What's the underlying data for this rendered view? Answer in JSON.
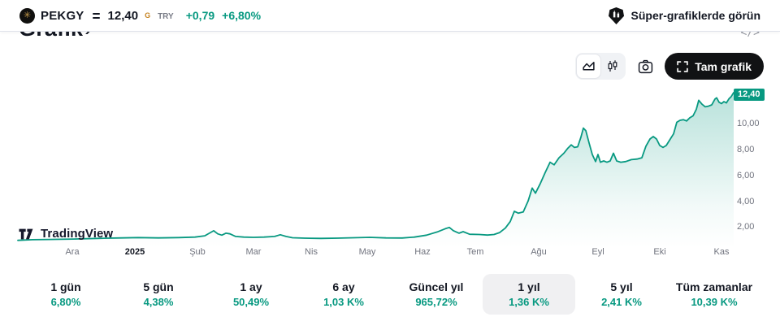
{
  "header": {
    "symbol": "PEKGY",
    "price": "12,40",
    "price_flag": "G",
    "currency": "TRY",
    "change_abs": "+0,79",
    "change_pct": "+6,80%",
    "supercharts_label": "Süper-grafiklerde görün"
  },
  "section": {
    "title": "Grafik",
    "chevron": "›"
  },
  "toolbar": {
    "fullscreen_label": "Tam grafik"
  },
  "watermark_label": "TradingView",
  "colors": {
    "accent_teal": "#089981",
    "text_dark": "#131722",
    "text_gray": "#787b86",
    "flag_gold": "#c5821f",
    "badge_bg": "#089981",
    "selected_pill": "#f0f0f2",
    "button_black": "#111214"
  },
  "chart_data": {
    "type": "area",
    "symbol": "PEKGY",
    "range": "1 yıl",
    "last_price": "12,40",
    "line_color": "#089981",
    "grid": false,
    "ylim": [
      0.7,
      13.0
    ],
    "x_ticks": [
      "Ara",
      "2025",
      "Şub",
      "Mar",
      "Nis",
      "May",
      "Haz",
      "Tem",
      "Ağu",
      "Eyl",
      "Eki",
      "Kas"
    ],
    "y_ticks": [
      "10,00",
      "8,00",
      "6,00",
      "4,00",
      "2,00"
    ],
    "y_tick_values": [
      10,
      8,
      6,
      4,
      2
    ],
    "points": [
      [
        22,
        0.95
      ],
      [
        40,
        1.0
      ],
      [
        60,
        1.02
      ],
      [
        90,
        1.05
      ],
      [
        120,
        1.1
      ],
      [
        150,
        1.14
      ],
      [
        170,
        1.16
      ],
      [
        195,
        1.14
      ],
      [
        220,
        1.16
      ],
      [
        240,
        1.2
      ],
      [
        252,
        1.3
      ],
      [
        263,
        1.69
      ],
      [
        268,
        1.45
      ],
      [
        273,
        1.35
      ],
      [
        278,
        1.5
      ],
      [
        283,
        1.45
      ],
      [
        290,
        1.25
      ],
      [
        300,
        1.2
      ],
      [
        312,
        1.18
      ],
      [
        325,
        1.2
      ],
      [
        338,
        1.25
      ],
      [
        345,
        1.38
      ],
      [
        352,
        1.25
      ],
      [
        360,
        1.15
      ],
      [
        375,
        1.12
      ],
      [
        395,
        1.1
      ],
      [
        415,
        1.12
      ],
      [
        435,
        1.15
      ],
      [
        455,
        1.18
      ],
      [
        475,
        1.14
      ],
      [
        495,
        1.13
      ],
      [
        510,
        1.2
      ],
      [
        525,
        1.35
      ],
      [
        538,
        1.6
      ],
      [
        548,
        1.85
      ],
      [
        553,
        1.95
      ],
      [
        558,
        1.7
      ],
      [
        565,
        1.5
      ],
      [
        570,
        1.62
      ],
      [
        578,
        1.42
      ],
      [
        590,
        1.4
      ],
      [
        600,
        1.36
      ],
      [
        608,
        1.4
      ],
      [
        615,
        1.55
      ],
      [
        622,
        1.9
      ],
      [
        628,
        2.4
      ],
      [
        633,
        3.2
      ],
      [
        638,
        3.05
      ],
      [
        644,
        3.15
      ],
      [
        650,
        4.0
      ],
      [
        655,
        5.0
      ],
      [
        659,
        4.6
      ],
      [
        665,
        5.35
      ],
      [
        671,
        6.2
      ],
      [
        677,
        7.0
      ],
      [
        682,
        6.8
      ],
      [
        688,
        7.35
      ],
      [
        694,
        7.7
      ],
      [
        699,
        8.1
      ],
      [
        703,
        8.35
      ],
      [
        707,
        8.15
      ],
      [
        711,
        8.2
      ],
      [
        715,
        8.95
      ],
      [
        718,
        9.65
      ],
      [
        721,
        9.45
      ],
      [
        725,
        8.5
      ],
      [
        729,
        7.6
      ],
      [
        733,
        7.05
      ],
      [
        736,
        7.6
      ],
      [
        739,
        7.0
      ],
      [
        743,
        7.1
      ],
      [
        747,
        7.0
      ],
      [
        751,
        7.1
      ],
      [
        755,
        7.7
      ],
      [
        759,
        7.1
      ],
      [
        764,
        7.0
      ],
      [
        770,
        7.05
      ],
      [
        777,
        7.2
      ],
      [
        784,
        7.25
      ],
      [
        790,
        7.35
      ],
      [
        795,
        8.25
      ],
      [
        800,
        8.8
      ],
      [
        804,
        9.0
      ],
      [
        808,
        8.8
      ],
      [
        812,
        8.3
      ],
      [
        816,
        8.15
      ],
      [
        820,
        8.3
      ],
      [
        825,
        8.8
      ],
      [
        829,
        9.2
      ],
      [
        833,
        10.1
      ],
      [
        837,
        10.25
      ],
      [
        841,
        10.3
      ],
      [
        845,
        10.2
      ],
      [
        849,
        10.45
      ],
      [
        853,
        10.6
      ],
      [
        857,
        11.1
      ],
      [
        860,
        11.8
      ],
      [
        864,
        11.5
      ],
      [
        868,
        11.3
      ],
      [
        872,
        11.35
      ],
      [
        876,
        11.45
      ],
      [
        880,
        11.9
      ],
      [
        882,
        12.0
      ],
      [
        885,
        11.65
      ],
      [
        888,
        11.55
      ],
      [
        891,
        11.7
      ],
      [
        894,
        11.6
      ],
      [
        897,
        11.9
      ],
      [
        900,
        12.1
      ],
      [
        903,
        12.4
      ]
    ]
  },
  "periods": [
    {
      "label": "1 gün",
      "value": "6,80%",
      "selected": false
    },
    {
      "label": "5 gün",
      "value": "4,38%",
      "selected": false
    },
    {
      "label": "1 ay",
      "value": "50,49%",
      "selected": false
    },
    {
      "label": "6 ay",
      "value": "1,03 K%",
      "selected": false
    },
    {
      "label": "Güncel yıl",
      "value": "965,72%",
      "selected": false
    },
    {
      "label": "1 yıl",
      "value": "1,36 K%",
      "selected": true
    },
    {
      "label": "5 yıl",
      "value": "2,41 K%",
      "selected": false
    },
    {
      "label": "Tüm zamanlar",
      "value": "10,39 K%",
      "selected": false
    }
  ]
}
